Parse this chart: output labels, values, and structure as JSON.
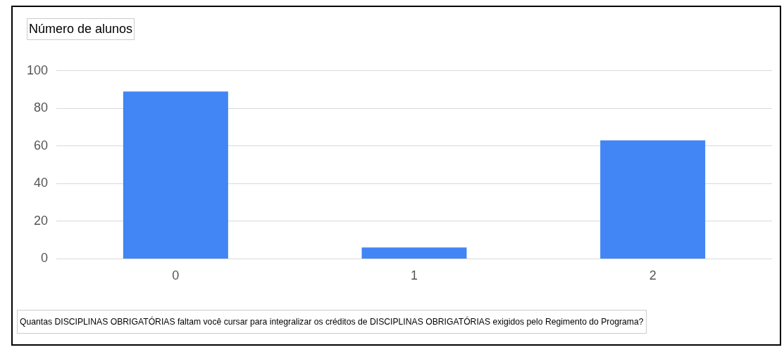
{
  "chart_data": {
    "type": "bar",
    "ylabel": "Número de alunos",
    "xlabel": "Quantas DISCIPLINAS OBRIGATÓRIAS faltam você cursar para integralizar os créditos de DISCIPLINAS OBRIGATÓRIAS exigidos pelo Regimento do Programa?",
    "categories": [
      "0",
      "1",
      "2"
    ],
    "values": [
      89,
      6,
      63
    ],
    "color": "#4285f4",
    "ylim": [
      0,
      100
    ],
    "yticks": [
      0,
      20,
      40,
      60,
      80,
      100
    ],
    "grid": "y"
  }
}
